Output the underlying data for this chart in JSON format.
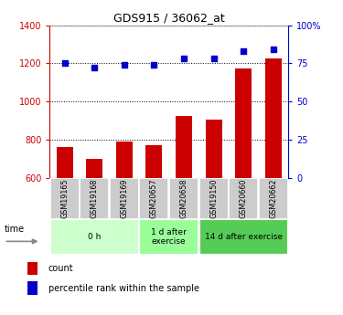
{
  "title": "GDS915 / 36062_at",
  "samples": [
    "GSM19165",
    "GSM19168",
    "GSM19169",
    "GSM20657",
    "GSM20658",
    "GSM19150",
    "GSM20660",
    "GSM20662"
  ],
  "counts": [
    760,
    700,
    790,
    770,
    925,
    905,
    1175,
    1225
  ],
  "percentile_ranks": [
    75,
    72,
    74,
    74,
    78,
    78,
    83,
    84
  ],
  "ylim_left": [
    600,
    1400
  ],
  "ylim_right": [
    0,
    100
  ],
  "yticks_left": [
    600,
    800,
    1000,
    1200,
    1400
  ],
  "yticks_right": [
    0,
    25,
    50,
    75,
    100
  ],
  "bar_color": "#cc0000",
  "dot_color": "#0000cc",
  "bar_width": 0.55,
  "groups": [
    {
      "label": "0 h",
      "indices": [
        0,
        1,
        2
      ],
      "color": "#ccffcc"
    },
    {
      "label": "1 d after\nexercise",
      "indices": [
        3,
        4
      ],
      "color": "#99ff99"
    },
    {
      "label": "14 d after exercise",
      "indices": [
        5,
        6,
        7
      ],
      "color": "#55cc55"
    }
  ],
  "legend_count_label": "count",
  "legend_percentile_label": "percentile rank within the sample",
  "time_label": "time",
  "grid_color": "#000000",
  "axis_color_left": "#cc0000",
  "axis_color_right": "#0000cc",
  "label_bg_color": "#cccccc",
  "label_box_edge": "#ffffff"
}
